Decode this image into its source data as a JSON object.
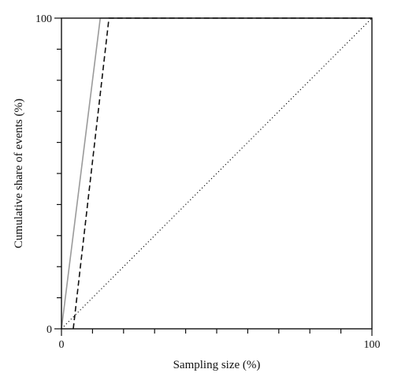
{
  "chart_data": {
    "type": "line",
    "xlabel": "Sampling size (%)",
    "ylabel": "Cumulative share of events (%)",
    "xlim": [
      0,
      100
    ],
    "ylim": [
      0,
      100
    ],
    "x_tick_labels": [
      "0",
      "100"
    ],
    "y_tick_labels": [
      "0",
      "100"
    ],
    "x_minor_ticks": [
      10,
      20,
      30,
      40,
      50,
      60,
      70,
      80,
      90
    ],
    "y_minor_ticks": [
      10,
      20,
      30,
      40,
      50,
      60,
      70,
      80,
      90
    ],
    "grid": false,
    "legend": "none",
    "series": [
      {
        "style": "solid",
        "color": "#9a9a9a",
        "points": [
          [
            0,
            0
          ],
          [
            12.5,
            100
          ],
          [
            100,
            100
          ]
        ]
      },
      {
        "style": "dashed",
        "color": "#111111",
        "points": [
          [
            3.8,
            0
          ],
          [
            15.3,
            100
          ],
          [
            100,
            100
          ]
        ]
      },
      {
        "style": "dotted",
        "color": "#111111",
        "points": [
          [
            0,
            0
          ],
          [
            100,
            100
          ]
        ]
      }
    ]
  }
}
